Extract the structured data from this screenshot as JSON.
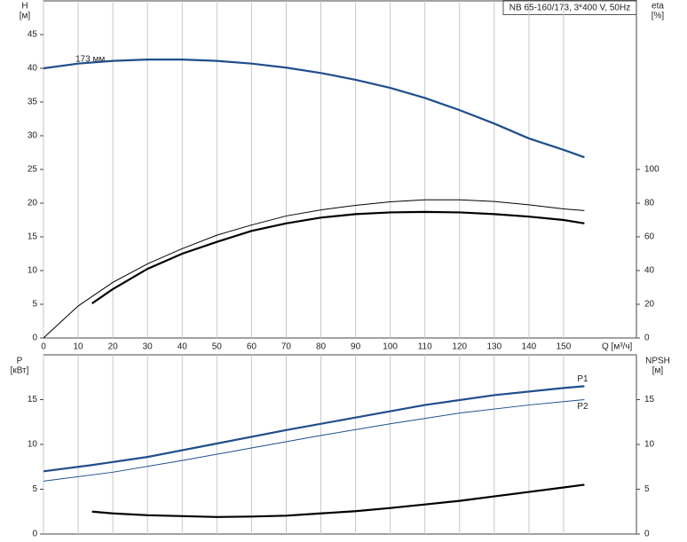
{
  "chart_data": [
    {
      "type": "line",
      "info": "NB 65-160/173, 3*400 V, 50Hz",
      "y_label": "H",
      "y_unit": "[м]",
      "y2_label": "eta",
      "y2_unit": "[%]",
      "x_label": "Q [м³/ч]",
      "xlim": [
        0,
        171
      ],
      "xticks": [
        0,
        10,
        20,
        30,
        40,
        50,
        60,
        70,
        80,
        90,
        100,
        110,
        120,
        130,
        140,
        150
      ],
      "x_tick_labels": true,
      "ylim": [
        0,
        50
      ],
      "yticks": [
        0,
        5,
        10,
        15,
        20,
        25,
        30,
        35,
        40,
        45
      ],
      "y2lim": [
        0,
        200
      ],
      "y2ticks": [
        0,
        20,
        40,
        60,
        80,
        100
      ],
      "grid": "x",
      "series": [
        {
          "name": "173 мм",
          "color": "#1f4e8c",
          "style": "thick",
          "label_at": "start",
          "x": [
            0,
            10,
            20,
            30,
            40,
            50,
            60,
            70,
            80,
            90,
            100,
            110,
            120,
            130,
            140,
            150,
            156
          ],
          "values": [
            40,
            40.7,
            41.1,
            41.3,
            41.3,
            41.1,
            40.7,
            40.1,
            39.3,
            38.3,
            37.1,
            35.6,
            33.8,
            31.8,
            29.6,
            27.9,
            26.8
          ]
        },
        {
          "color": "#000000",
          "style": "thin",
          "axis": "y2",
          "x": [
            0,
            10,
            20,
            30,
            40,
            50,
            60,
            70,
            80,
            90,
            100,
            110,
            120,
            130,
            140,
            150,
            156
          ],
          "values": [
            0,
            19,
            33,
            44,
            53,
            61,
            67,
            72.4,
            76,
            78.7,
            80.8,
            82,
            82,
            81,
            79,
            76.6,
            75.6
          ]
        },
        {
          "color": "#000000",
          "style": "thick",
          "axis": "y2",
          "x": [
            14,
            20,
            30,
            40,
            50,
            60,
            70,
            80,
            90,
            100,
            110,
            120,
            130,
            140,
            150,
            156
          ],
          "values": [
            20.5,
            29,
            41,
            50,
            57,
            63.5,
            68,
            71.4,
            73.5,
            74.5,
            74.8,
            74.5,
            73.5,
            72,
            70,
            68
          ]
        }
      ]
    },
    {
      "type": "line",
      "y_label": "P",
      "y_unit": "[кВт]",
      "y2_label": "NPSH",
      "y2_unit": "[м]",
      "xlim": [
        0,
        171
      ],
      "xticks": [
        0,
        10,
        20,
        30,
        40,
        50,
        60,
        70,
        80,
        90,
        100,
        110,
        120,
        130,
        140,
        150
      ],
      "x_tick_labels": false,
      "ylim": [
        0,
        20
      ],
      "yticks": [
        0,
        5,
        10,
        15
      ],
      "y2lim": [
        0,
        20
      ],
      "y2ticks": [
        0,
        5,
        10,
        15
      ],
      "grid": "x",
      "series": [
        {
          "name": "P1",
          "color": "#1f4e8c",
          "style": "thick",
          "label_at": "end",
          "x": [
            0,
            14,
            30,
            50,
            70,
            90,
            110,
            130,
            150,
            156
          ],
          "values": [
            7.0,
            7.7,
            8.6,
            10.1,
            11.6,
            13.0,
            14.4,
            15.5,
            16.3,
            16.5
          ]
        },
        {
          "name": "P2",
          "color": "#1f4e8c",
          "style": "thin",
          "label_at": "end",
          "x": [
            0,
            20,
            40,
            60,
            80,
            100,
            120,
            140,
            156
          ],
          "values": [
            5.9,
            6.9,
            8.2,
            9.6,
            11.0,
            12.3,
            13.5,
            14.4,
            15.0
          ]
        },
        {
          "color": "#000000",
          "style": "thick",
          "axis": "y2",
          "x": [
            14,
            20,
            30,
            40,
            50,
            60,
            70,
            80,
            90,
            100,
            110,
            120,
            130,
            140,
            150,
            156
          ],
          "values": [
            2.5,
            2.3,
            2.1,
            2.0,
            1.9,
            1.95,
            2.05,
            2.3,
            2.55,
            2.9,
            3.3,
            3.7,
            4.2,
            4.7,
            5.2,
            5.5
          ]
        }
      ]
    }
  ]
}
